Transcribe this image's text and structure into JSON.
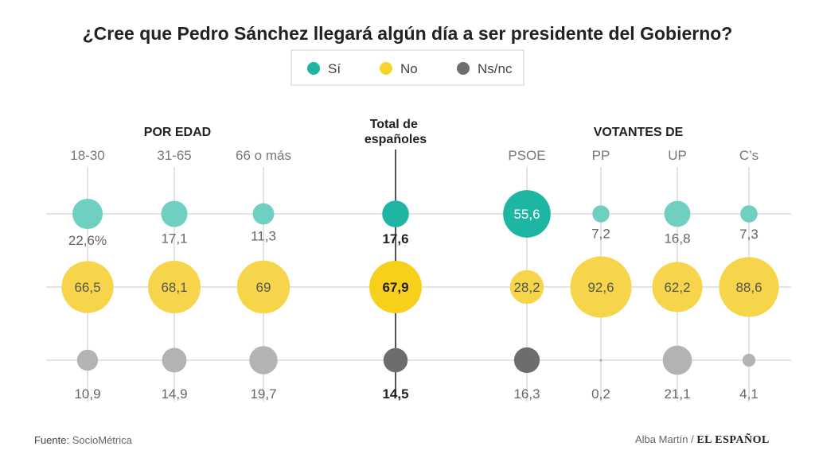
{
  "chart_data": {
    "type": "bubble",
    "title": "¿Cree que Pedro Sánchez llegará algún día a ser presidente del Gobierno?",
    "legend": [
      {
        "key": "si",
        "label": "Sí",
        "color": "#1fb5a3"
      },
      {
        "key": "no",
        "label": "No",
        "color": "#f6d42a"
      },
      {
        "key": "nsnc",
        "label": "Ns/nc",
        "color": "#6d6d6d"
      }
    ],
    "groups": [
      {
        "label": "POR EDAD"
      },
      {
        "label": "Total de españoles"
      },
      {
        "label": "VOTANTES DE"
      }
    ],
    "categories": [
      {
        "name": "18-30",
        "group": 0,
        "si": 22.6,
        "no": 66.5,
        "nsnc": 10.9,
        "si_label": "22,6%",
        "no_label": "66,5",
        "nsnc_label": "10,9"
      },
      {
        "name": "31-65",
        "group": 0,
        "si": 17.1,
        "no": 68.1,
        "nsnc": 14.9,
        "si_label": "17,1",
        "no_label": "68,1",
        "nsnc_label": "14,9"
      },
      {
        "name": "66 o más",
        "group": 0,
        "si": 11.3,
        "no": 69,
        "nsnc": 19.7,
        "si_label": "11,3",
        "no_label": "69",
        "nsnc_label": "19,7"
      },
      {
        "name": "",
        "group": 1,
        "highlight": true,
        "si": 17.6,
        "no": 67.9,
        "nsnc": 14.5,
        "si_label": "17,6",
        "no_label": "67,9",
        "nsnc_label": "14,5"
      },
      {
        "name": "PSOE",
        "group": 2,
        "si": 55.6,
        "no": 28.2,
        "nsnc": 16.3,
        "si_label": "55,6",
        "no_label": "28,2",
        "nsnc_label": "16,3"
      },
      {
        "name": "PP",
        "group": 2,
        "si": 7.2,
        "no": 92.6,
        "nsnc": 0.2,
        "si_label": "7,2",
        "no_label": "92,6",
        "nsnc_label": "0,2"
      },
      {
        "name": "UP",
        "group": 2,
        "si": 16.8,
        "no": 62.2,
        "nsnc": 21.1,
        "si_label": "16,8",
        "no_label": "62,2",
        "nsnc_label": "21,1"
      },
      {
        "name": "C’s",
        "group": 2,
        "si": 7.3,
        "no": 88.6,
        "nsnc": 4.1,
        "si_label": "7,3",
        "no_label": "88,6",
        "nsnc_label": "4,1"
      }
    ],
    "colors": {
      "si_light": "#6fcfc1",
      "no_light": "#f7d54a",
      "nsnc_light": "#b3b3b3",
      "si_dark": "#1fb5a3",
      "no_dark": "#f6d01a",
      "nsnc_dark": "#6d6d6d"
    }
  },
  "footer": {
    "source_label": "Fuente:",
    "source": "SocioMétrica",
    "author": "Alba Martín /",
    "brand": "EL ESPAÑOL"
  }
}
